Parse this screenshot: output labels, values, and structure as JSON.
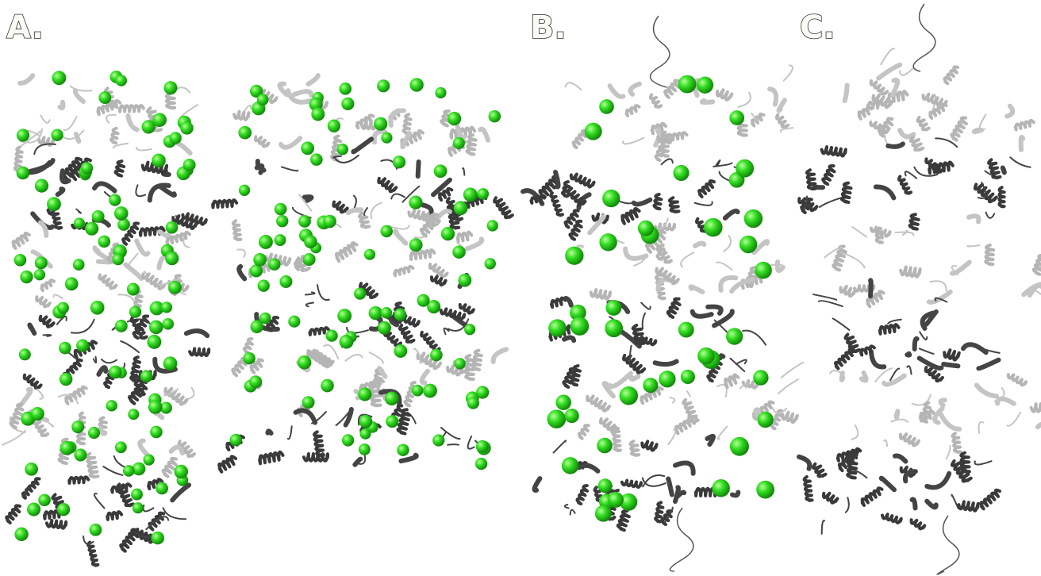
{
  "panels": [
    {
      "label": "A."
    },
    {
      "label": "B."
    },
    {
      "label": "C."
    }
  ]
}
